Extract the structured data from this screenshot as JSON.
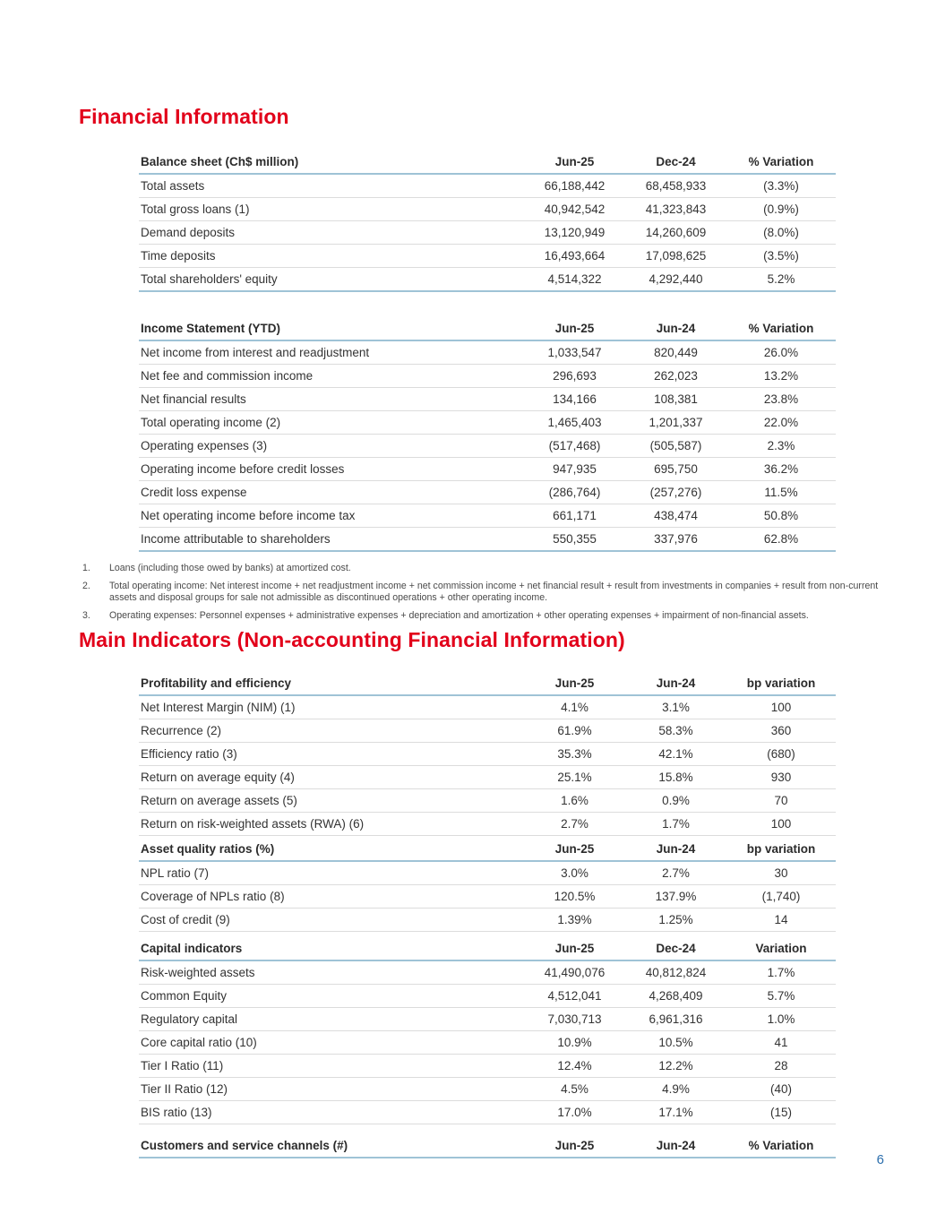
{
  "page": {
    "number": "6"
  },
  "headings": {
    "financial_information": "Financial Information",
    "main_indicators": "Main Indicators (Non-accounting Financial Information)"
  },
  "colors": {
    "accent_red": "#e2001a",
    "table_rule_blue": "#9fc3d6",
    "row_rule_gray": "#dcdcdc",
    "page_number_blue": "#2c6fad"
  },
  "tables": [
    {
      "id": "balance-sheet",
      "header": [
        "Balance sheet (Ch$ million)",
        "Jun-25",
        "Dec-24",
        "% Variation"
      ],
      "rows": [
        [
          "Total assets",
          "66,188,442",
          "68,458,933",
          "(3.3%)"
        ],
        [
          "Total gross loans (1)",
          "40,942,542",
          "41,323,843",
          "(0.9%)"
        ],
        [
          "Demand deposits",
          "13,120,949",
          "14,260,609",
          "(8.0%)"
        ],
        [
          "Time deposits",
          "16,493,664",
          "17,098,625",
          "(3.5%)"
        ],
        [
          "Total shareholders' equity",
          "4,514,322",
          "4,292,440",
          "5.2%"
        ]
      ]
    },
    {
      "id": "income-statement",
      "header": [
        "Income Statement (YTD)",
        "Jun-25",
        "Jun-24",
        "% Variation"
      ],
      "rows": [
        [
          "Net income from interest and readjustment",
          "1,033,547",
          "820,449",
          "26.0%"
        ],
        [
          "Net fee and commission income",
          "296,693",
          "262,023",
          "13.2%"
        ],
        [
          "Net financial results",
          "134,166",
          "108,381",
          "23.8%"
        ],
        [
          "Total operating income (2)",
          "1,465,403",
          "1,201,337",
          "22.0%"
        ],
        [
          "Operating expenses (3)",
          "(517,468)",
          "(505,587)",
          "2.3%"
        ],
        [
          "Operating income before credit losses",
          "947,935",
          "695,750",
          "36.2%"
        ],
        [
          "Credit loss expense",
          "(286,764)",
          "(257,276)",
          "11.5%"
        ],
        [
          "Net operating income before income tax",
          "661,171",
          "438,474",
          "50.8%"
        ],
        [
          "Income attributable to shareholders",
          "550,355",
          "337,976",
          "62.8%"
        ]
      ]
    },
    {
      "id": "profitability-efficiency",
      "header": [
        "Profitability and efficiency",
        "Jun-25",
        "Jun-24",
        "bp variation"
      ],
      "rows": [
        [
          "Net Interest Margin (NIM) (1)",
          "4.1%",
          "3.1%",
          "100"
        ],
        [
          "Recurrence (2)",
          "61.9%",
          "58.3%",
          "360"
        ],
        [
          "Efficiency ratio (3)",
          "35.3%",
          "42.1%",
          "(680)"
        ],
        [
          "Return on average equity (4)",
          "25.1%",
          "15.8%",
          "930"
        ],
        [
          "Return on average assets (5)",
          "1.6%",
          "0.9%",
          "70"
        ],
        [
          "Return on risk-weighted assets (RWA) (6)",
          "2.7%",
          "1.7%",
          "100"
        ]
      ]
    },
    {
      "id": "asset-quality-ratios",
      "header": [
        "Asset quality ratios (%)",
        "Jun-25",
        "Jun-24",
        "bp variation"
      ],
      "rows": [
        [
          "NPL ratio (7)",
          "3.0%",
          "2.7%",
          "30"
        ],
        [
          "Coverage of NPLs  ratio (8)",
          "120.5%",
          "137.9%",
          "(1,740)"
        ],
        [
          "Cost of credit (9)",
          "1.39%",
          "1.25%",
          "14"
        ]
      ]
    },
    {
      "id": "capital-indicators",
      "header": [
        "Capital indicators",
        "Jun-25",
        "Dec-24",
        "Variation"
      ],
      "rows": [
        [
          "Risk-weighted assets",
          "41,490,076",
          "40,812,824",
          "1.7%"
        ],
        [
          "Common Equity",
          "4,512,041",
          "4,268,409",
          "5.7%"
        ],
        [
          "Regulatory capital",
          "7,030,713",
          "6,961,316",
          "1.0%"
        ],
        [
          "Core capital ratio (10)",
          "10.9%",
          "10.5%",
          "41"
        ],
        [
          "Tier I Ratio (11)",
          "12.4%",
          "12.2%",
          "28"
        ],
        [
          "Tier II Ratio (12)",
          "4.5%",
          "4.9%",
          "(40)"
        ],
        [
          "BIS ratio (13)",
          "17.0%",
          "17.1%",
          "(15)"
        ]
      ]
    },
    {
      "id": "customers-service-channels",
      "header": [
        "Customers and service channels (#)",
        "Jun-25",
        "Jun-24",
        "% Variation"
      ],
      "rows": []
    }
  ],
  "footnotes": [
    {
      "num": "1.",
      "text": "Loans (including those owed by banks) at amortized cost."
    },
    {
      "num": "2.",
      "text": "Total operating income: Net interest income + net readjustment income + net commission income + net financial result + result from investments in companies + result from non-current assets and disposal groups for sale not admissible as discontinued operations + other operating income."
    },
    {
      "num": "3.",
      "text": "Operating expenses: Personnel expenses + administrative expenses + depreciation and amortization + other operating expenses + impairment of non-financial assets."
    }
  ]
}
